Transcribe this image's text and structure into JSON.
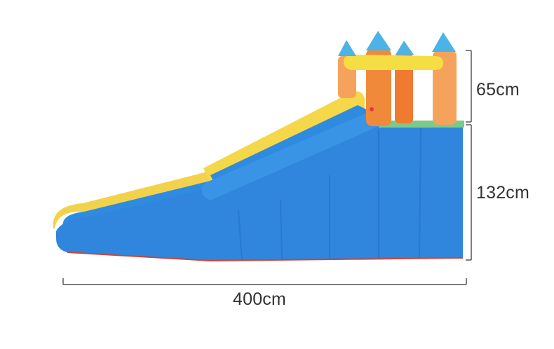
{
  "product": {
    "name": "inflatable-water-slide",
    "colors": {
      "blue": "#2f8be0",
      "blue_dark": "#1f6fc4",
      "yellow": "#f5de44",
      "orange": "#f08a3a",
      "orange_light": "#f5a35c",
      "teal": "#4cb3e6",
      "red_trim": "#c9463a"
    }
  },
  "dimensions": {
    "tower_height": "65cm",
    "base_height": "132cm",
    "length": "400cm"
  }
}
